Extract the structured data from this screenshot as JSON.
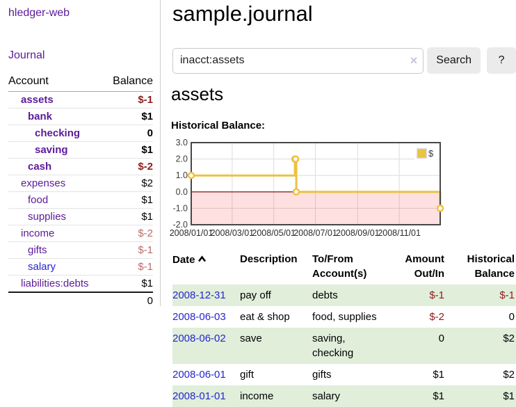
{
  "colors": {
    "accent_purple": "#5b1a9a",
    "link_blue": "#2626cf",
    "negative": "#8e1c1c",
    "negative_muted": "#bc6a6a",
    "row_stripe_green": "#e0eeda",
    "chart_line": "#edc240",
    "chart_zero_line": "#7d0000",
    "chart_negative_fill": "rgba(255,0,0,0.12)",
    "chart_border": "#474747",
    "chart_grid": "#dcdcdc"
  },
  "sidebar": {
    "brand": "hledger-web",
    "journal_link": "Journal",
    "accounts_table": {
      "account_header": "Account",
      "balance_header": "Balance",
      "rows": [
        {
          "name": "assets",
          "indent": 1,
          "bold": true,
          "name_color": "purple",
          "balance": "$-1",
          "balance_tone": "negative"
        },
        {
          "name": "bank",
          "indent": 2,
          "bold": true,
          "name_color": "purple",
          "balance": "$1",
          "balance_tone": "normal"
        },
        {
          "name": "checking",
          "indent": 3,
          "bold": true,
          "name_color": "purple",
          "balance": "0",
          "balance_tone": "normal"
        },
        {
          "name": "saving",
          "indent": 3,
          "bold": true,
          "name_color": "purple",
          "balance": "$1",
          "balance_tone": "normal"
        },
        {
          "name": "cash",
          "indent": 2,
          "bold": true,
          "name_color": "purple",
          "balance": "$-2",
          "balance_tone": "negative"
        },
        {
          "name": "expenses",
          "indent": 1,
          "bold": false,
          "name_color": "purple",
          "balance": "$2",
          "balance_tone": "normal"
        },
        {
          "name": "food",
          "indent": 2,
          "bold": false,
          "name_color": "purple",
          "balance": "$1",
          "balance_tone": "normal"
        },
        {
          "name": "supplies",
          "indent": 2,
          "bold": false,
          "name_color": "purple",
          "balance": "$1",
          "balance_tone": "normal"
        },
        {
          "name": "income",
          "indent": 1,
          "bold": false,
          "name_color": "purple",
          "balance": "$-2",
          "balance_tone": "negative-muted"
        },
        {
          "name": "gifts",
          "indent": 2,
          "bold": false,
          "name_color": "purple",
          "balance": "$-1",
          "balance_tone": "negative-muted"
        },
        {
          "name": "salary",
          "indent": 2,
          "bold": false,
          "name_color": "blue",
          "balance": "$-1",
          "balance_tone": "negative-muted"
        },
        {
          "name": "liabilities:debts",
          "indent": 1,
          "bold": false,
          "name_color": "purple",
          "balance": "$1",
          "balance_tone": "normal"
        }
      ],
      "total": "0"
    }
  },
  "main": {
    "title": "sample.journal",
    "search": {
      "value": "inacct:assets",
      "clear_icon": "×",
      "search_button": "Search",
      "help_button": "?"
    },
    "account_heading": "assets",
    "chart_title": "Historical Balance:"
  },
  "chart_data": {
    "type": "line",
    "step": true,
    "title": "Historical Balance:",
    "series": [
      {
        "name": "$",
        "points": [
          [
            "2008-01-01",
            1
          ],
          [
            "2008-06-01",
            2
          ],
          [
            "2008-06-02",
            2
          ],
          [
            "2008-06-03",
            0
          ],
          [
            "2008-12-31",
            -1
          ]
        ]
      }
    ],
    "x_range": [
      "2008-01-01",
      "2008-12-31"
    ],
    "x_tick_labels": [
      "2008/01/01",
      "2008/03/01",
      "2008/05/01",
      "2008/07/01",
      "2008/09/01",
      "2008/11/01"
    ],
    "y_ticks": [
      3,
      2,
      1,
      0,
      -1,
      -2
    ],
    "ylim": [
      -2,
      3
    ],
    "grid": true,
    "legend_position": "top-right",
    "negative_region_shaded": true
  },
  "register": {
    "headers": {
      "date": "Date",
      "description": "Description",
      "account": "To/From Account(s)",
      "amount": "Amount Out/In",
      "balance": "Historical Balance"
    },
    "rows": [
      {
        "date": "2008-12-31",
        "description": "pay off",
        "accounts": "debts",
        "amount": "$-1",
        "amount_negative": true,
        "balance": "$-1",
        "balance_negative": true
      },
      {
        "date": "2008-06-03",
        "description": "eat & shop",
        "accounts": "food, supplies",
        "amount": "$-2",
        "amount_negative": true,
        "balance": "0",
        "balance_negative": false
      },
      {
        "date": "2008-06-02",
        "description": "save",
        "accounts": "saving, checking",
        "amount": "0",
        "amount_negative": false,
        "balance": "$2",
        "balance_negative": false
      },
      {
        "date": "2008-06-01",
        "description": "gift",
        "accounts": "gifts",
        "amount": "$1",
        "amount_negative": false,
        "balance": "$2",
        "balance_negative": false
      },
      {
        "date": "2008-01-01",
        "description": "income",
        "accounts": "salary",
        "amount": "$1",
        "amount_negative": false,
        "balance": "$1",
        "balance_negative": false
      }
    ]
  }
}
